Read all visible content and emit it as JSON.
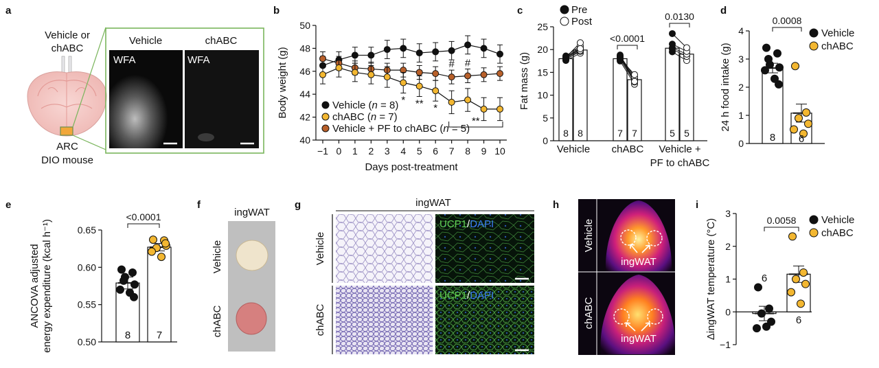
{
  "colors": {
    "vehicle": "#111111",
    "chabc": "#f3b731",
    "pf": "#b8602a",
    "green": "#7ab55c"
  },
  "panels": {
    "a": {
      "letter": "a",
      "injection": [
        "Vehicle or",
        "chABC"
      ],
      "region": "ARC",
      "mouse": "DIO mouse",
      "col1": "Vehicle",
      "col2": "chABC",
      "stain1": "WFA",
      "stain2": "WFA"
    },
    "b": {
      "letter": "b"
    },
    "c": {
      "letter": "c"
    },
    "d": {
      "letter": "d"
    },
    "e": {
      "letter": "e"
    },
    "f": {
      "letter": "f",
      "title": "ingWAT",
      "row1": "Vehicle",
      "row2": "chABC"
    },
    "g": {
      "letter": "g",
      "title": "ingWAT",
      "row1": "Vehicle",
      "row2": "chABC",
      "ucp1": "UCP1",
      "slash": "/",
      "dapi": "DAPI"
    },
    "h": {
      "letter": "h",
      "row1": "Vehicle",
      "row2": "chABC",
      "ann1": "ingWAT",
      "ann2": "ingWAT"
    },
    "i": {
      "letter": "i"
    }
  },
  "chart_data": [
    {
      "panel": "b",
      "type": "line",
      "xlabel": "Days post-treatment",
      "ylabel": "Body weight (g)",
      "xlim": [
        -1,
        10
      ],
      "ylim": [
        40,
        50
      ],
      "xticks": [
        "−1",
        "0",
        "1",
        "2",
        "3",
        "4",
        "5",
        "6",
        "7",
        "8",
        "9",
        "10"
      ],
      "yticks": [
        "40",
        "42",
        "44",
        "46",
        "48",
        "50"
      ],
      "x": [
        -1,
        0,
        1,
        2,
        3,
        4,
        5,
        6,
        7,
        8,
        9,
        10
      ],
      "series": [
        {
          "name": "Vehicle (n = 8)",
          "legend_parts": [
            "Vehicle (",
            "n",
            " = 8)"
          ],
          "color": "#111111",
          "values": [
            46.5,
            47.0,
            47.4,
            47.4,
            47.9,
            48.0,
            47.6,
            47.7,
            47.8,
            48.3,
            48.0,
            47.5
          ],
          "err": [
            0.8,
            0.7,
            0.7,
            0.7,
            0.8,
            0.8,
            0.8,
            0.8,
            0.8,
            0.8,
            0.8,
            0.8
          ]
        },
        {
          "name": "chABC (n = 7)",
          "legend_parts": [
            "chABC (",
            "n",
            " = 7)"
          ],
          "color": "#f3b731",
          "values": [
            45.7,
            46.3,
            45.9,
            45.7,
            45.5,
            45.0,
            44.7,
            44.3,
            43.3,
            43.5,
            42.7,
            42.7
          ],
          "err": [
            0.8,
            0.8,
            0.8,
            0.8,
            0.9,
            0.9,
            0.9,
            0.9,
            1.0,
            1.0,
            1.0,
            1.0
          ]
        },
        {
          "name": "Vehicle + PF to chABC (n = 5)",
          "legend_parts": [
            "Vehicle + PF to chABC (",
            "n",
            " = 5)"
          ],
          "color": "#b8602a",
          "values": [
            47.1,
            46.7,
            46.3,
            46.2,
            46.1,
            46.1,
            45.9,
            45.8,
            45.5,
            45.6,
            45.7,
            45.8
          ],
          "err": [
            0.6,
            0.6,
            0.6,
            0.6,
            0.6,
            0.6,
            0.6,
            0.6,
            0.6,
            0.6,
            0.6,
            0.6
          ]
        }
      ],
      "annotations": [
        {
          "x": 4,
          "text": "*"
        },
        {
          "x": 5,
          "text": "**"
        },
        {
          "x": 6,
          "text": "*"
        },
        {
          "x": 7,
          "text": "#"
        },
        {
          "x": 8,
          "text": "#"
        },
        {
          "text": "**",
          "bracket": [
            7,
            10
          ]
        }
      ]
    },
    {
      "panel": "c",
      "type": "bar",
      "ylabel": "Fat mass (g)",
      "ylim": [
        0,
        25
      ],
      "yticks": [
        "0",
        "5",
        "10",
        "15",
        "20",
        "25"
      ],
      "categories": [
        "Vehicle",
        "chABC",
        "Vehicle +"
      ],
      "category_line2": [
        "",
        "",
        "PF to chABC"
      ],
      "legend": [
        "Pre",
        "Post"
      ],
      "series": [
        {
          "name": "Pre",
          "values": [
            18.0,
            18.0,
            20.3
          ],
          "n": [
            "8",
            "7",
            "5"
          ]
        },
        {
          "name": "Post",
          "values": [
            19.9,
            13.4,
            19.0
          ],
          "n": [
            "8",
            "7",
            "5"
          ]
        }
      ],
      "pvalues": [
        "",
        "<0.0001",
        "0.0130"
      ],
      "pre_points": [
        [
          17.6,
          17.9,
          18.1,
          18.4,
          18.6,
          18.3,
          17.8,
          18.2
        ],
        [
          17.5,
          17.9,
          18.2,
          18.4,
          18.6,
          18.0,
          18.8
        ],
        [
          19.5,
          20.1,
          20.4,
          21.2,
          23.5
        ]
      ],
      "post_points": [
        [
          19.2,
          19.6,
          20.0,
          20.4,
          20.8,
          21.5,
          19.8,
          20.2
        ],
        [
          12.4,
          12.9,
          13.2,
          13.6,
          14.0,
          14.5,
          13.0
        ],
        [
          17.6,
          18.5,
          19.0,
          19.6,
          20.4
        ]
      ]
    },
    {
      "panel": "d",
      "type": "bar",
      "ylabel": "24 h food intake (g)",
      "ylim": [
        0,
        4
      ],
      "yticks": [
        "0",
        "1",
        "2",
        "3",
        "4"
      ],
      "categories": [
        "Vehicle",
        "chABC"
      ],
      "legend": [
        "Vehicle",
        "chABC"
      ],
      "values": [
        2.68,
        1.08
      ],
      "err": [
        0.17,
        0.32
      ],
      "n": [
        "8",
        "6"
      ],
      "pvalue": "0.0008",
      "points": [
        [
          3.4,
          3.2,
          2.8,
          2.7,
          2.6,
          2.3,
          2.1,
          3.0
        ],
        [
          2.75,
          1.1,
          0.9,
          0.7,
          0.5,
          0.35
        ]
      ]
    },
    {
      "panel": "e",
      "type": "bar",
      "ylabel": [
        "ANCOVA adjusted",
        "energy expenditure (kcal h⁻¹)"
      ],
      "ylim": [
        0.5,
        0.65
      ],
      "yticks": [
        "0.50",
        "0.55",
        "0.60",
        "0.65"
      ],
      "categories": [
        "Vehicle",
        "chABC"
      ],
      "values": [
        0.579,
        0.627
      ],
      "err": [
        0.008,
        0.005
      ],
      "n": [
        "8",
        "7"
      ],
      "pvalue": "<0.0001",
      "points": [
        [
          0.597,
          0.593,
          0.587,
          0.577,
          0.57,
          0.566,
          0.56,
          0.582
        ],
        [
          0.637,
          0.636,
          0.626,
          0.629,
          0.621,
          0.614,
          0.632
        ]
      ]
    },
    {
      "panel": "i",
      "type": "bar",
      "ylabel": "ΔingWAT temperature (°C)",
      "ylim": [
        -1,
        3
      ],
      "yticks": [
        "−1",
        "0",
        "1",
        "2",
        "3"
      ],
      "categories": [
        "Vehicle",
        "chABC"
      ],
      "legend": [
        "Vehicle",
        "chABC"
      ],
      "values": [
        -0.05,
        1.15
      ],
      "err": [
        0.22,
        0.25
      ],
      "n": [
        "6",
        "6"
      ],
      "pvalue": "0.0058",
      "points": [
        [
          0.75,
          0.1,
          -0.05,
          -0.3,
          -0.5,
          -0.45
        ],
        [
          2.3,
          1.2,
          1.0,
          0.85,
          0.6,
          0.25
        ]
      ]
    }
  ]
}
